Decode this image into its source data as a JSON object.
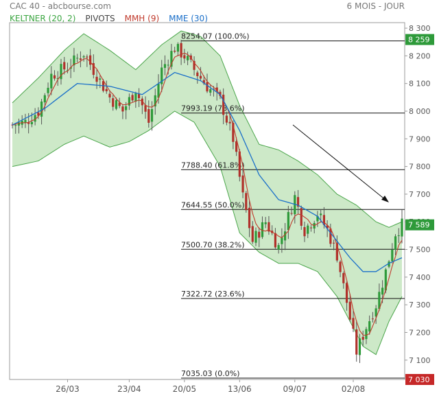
{
  "header": {
    "source": "CAC 40 - abcbourse.com",
    "period": "6 MOIS - JOUR"
  },
  "legend": [
    {
      "label": "KELTNER (20, 2)",
      "color": "#3aa540"
    },
    {
      "label": "PIVOTS",
      "color": "#444444"
    },
    {
      "label": "MMH (9)",
      "color": "#c0392b"
    },
    {
      "label": "MME (30)",
      "color": "#1a6fc9"
    }
  ],
  "colors": {
    "band_fill": "#cde9c8",
    "band_line": "#4aa54a",
    "up": "#2e9a3a",
    "down": "#b0302a",
    "mmh": "#c0392b",
    "mme": "#1a6fc9",
    "last_badge": "#2e9a3a",
    "low_badge": "#c62828"
  },
  "chart_data": {
    "type": "candlestick",
    "title": "CAC 40",
    "ylim": [
      7030,
      8320
    ],
    "y_ticks": [
      8300,
      8200,
      8100,
      8000,
      7900,
      7800,
      7700,
      7600,
      7500,
      7400,
      7300,
      7200,
      7100
    ],
    "y_tick_labels": [
      "8 300",
      "8 200",
      "8 100",
      "8 000",
      "7 900",
      "7 800",
      "7 700",
      "7 600",
      "7 500",
      "7 400",
      "7 300",
      "7 200",
      "7 100"
    ],
    "x_tick_labels": [
      "26/03",
      "23/04",
      "20/05",
      "13/06",
      "09/07",
      "02/08"
    ],
    "x_tick_indices": [
      17,
      36,
      53,
      70,
      87,
      105
    ],
    "n_days": 121,
    "pivots": [
      {
        "value": 8254.07,
        "label": "8254.07",
        "pct": "(100.0%)"
      },
      {
        "value": 7993.19,
        "label": "7993.19",
        "pct": "(78.6%)"
      },
      {
        "value": 7788.4,
        "label": "7788.40",
        "pct": "(61.8%)"
      },
      {
        "value": 7644.55,
        "label": "7644.55",
        "pct": "(50.0%)"
      },
      {
        "value": 7500.7,
        "label": "7500.70",
        "pct": "(38.2%)"
      },
      {
        "value": 7322.72,
        "label": "7322.72",
        "pct": "(23.6%)"
      },
      {
        "value": 7035.03,
        "label": "7035.03",
        "pct": "(0.0%)"
      }
    ],
    "badges": [
      {
        "value": 8259,
        "label": "8 259"
      },
      {
        "value": 7589,
        "label": "7 589"
      },
      {
        "value": 7030,
        "label": "7 030"
      }
    ],
    "close_path": [
      [
        0,
        7950
      ],
      [
        4,
        7960
      ],
      [
        8,
        8000
      ],
      [
        12,
        8130
      ],
      [
        17,
        8160
      ],
      [
        22,
        8210
      ],
      [
        26,
        8130
      ],
      [
        30,
        8050
      ],
      [
        34,
        8000
      ],
      [
        38,
        8080
      ],
      [
        42,
        7960
      ],
      [
        46,
        8150
      ],
      [
        50,
        8230
      ],
      [
        53,
        8200
      ],
      [
        56,
        8150
      ],
      [
        60,
        8090
      ],
      [
        64,
        8040
      ],
      [
        68,
        7900
      ],
      [
        71,
        7690
      ],
      [
        74,
        7530
      ],
      [
        78,
        7600
      ],
      [
        82,
        7510
      ],
      [
        87,
        7690
      ],
      [
        90,
        7570
      ],
      [
        94,
        7630
      ],
      [
        97,
        7570
      ],
      [
        100,
        7480
      ],
      [
        103,
        7310
      ],
      [
        106,
        7130
      ],
      [
        109,
        7220
      ],
      [
        112,
        7300
      ],
      [
        115,
        7420
      ],
      [
        118,
        7560
      ],
      [
        120,
        7589
      ]
    ],
    "mme_path": [
      [
        0,
        7950
      ],
      [
        10,
        8010
      ],
      [
        20,
        8100
      ],
      [
        30,
        8090
      ],
      [
        40,
        8060
      ],
      [
        50,
        8140
      ],
      [
        58,
        8110
      ],
      [
        64,
        8060
      ],
      [
        70,
        7930
      ],
      [
        76,
        7770
      ],
      [
        82,
        7680
      ],
      [
        88,
        7660
      ],
      [
        94,
        7620
      ],
      [
        100,
        7530
      ],
      [
        104,
        7470
      ],
      [
        108,
        7420
      ],
      [
        112,
        7420
      ],
      [
        116,
        7450
      ],
      [
        120,
        7470
      ]
    ],
    "band_upper_path": [
      [
        0,
        8030
      ],
      [
        8,
        8120
      ],
      [
        16,
        8220
      ],
      [
        22,
        8280
      ],
      [
        30,
        8220
      ],
      [
        38,
        8150
      ],
      [
        46,
        8240
      ],
      [
        52,
        8290
      ],
      [
        58,
        8270
      ],
      [
        64,
        8200
      ],
      [
        70,
        8020
      ],
      [
        76,
        7880
      ],
      [
        82,
        7860
      ],
      [
        88,
        7820
      ],
      [
        94,
        7770
      ],
      [
        100,
        7700
      ],
      [
        106,
        7660
      ],
      [
        112,
        7600
      ],
      [
        116,
        7580
      ],
      [
        120,
        7600
      ]
    ],
    "band_lower_path": [
      [
        0,
        7800
      ],
      [
        8,
        7820
      ],
      [
        16,
        7880
      ],
      [
        22,
        7910
      ],
      [
        30,
        7870
      ],
      [
        36,
        7890
      ],
      [
        42,
        7930
      ],
      [
        50,
        8000
      ],
      [
        56,
        7960
      ],
      [
        64,
        7800
      ],
      [
        70,
        7560
      ],
      [
        76,
        7490
      ],
      [
        82,
        7450
      ],
      [
        88,
        7450
      ],
      [
        94,
        7420
      ],
      [
        100,
        7330
      ],
      [
        104,
        7240
      ],
      [
        108,
        7150
      ],
      [
        112,
        7120
      ],
      [
        116,
        7240
      ],
      [
        120,
        7330
      ]
    ]
  }
}
